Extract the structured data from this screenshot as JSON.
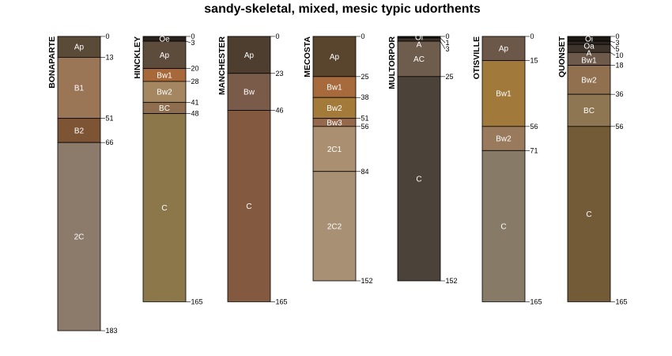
{
  "chart_data": {
    "type": "soil-profile-sketch",
    "title": "sandy-skeletal, mixed, mesic typic udorthents",
    "depth_units": "cm",
    "y_max": 183,
    "profiles": [
      {
        "name": "BONAPARTE",
        "max_depth": 183,
        "horizons": [
          {
            "name": "Ap",
            "top": 0,
            "bottom": 13,
            "color": "#5a4a38"
          },
          {
            "name": "B1",
            "top": 13,
            "bottom": 51,
            "color": "#9a7556"
          },
          {
            "name": "B2",
            "top": 51,
            "bottom": 66,
            "color": "#7d5535"
          },
          {
            "name": "2C",
            "top": 66,
            "bottom": 183,
            "color": "#8c7b6b"
          }
        ]
      },
      {
        "name": "HINCKLEY",
        "max_depth": 165,
        "horizons": [
          {
            "name": "Oe",
            "top": 0,
            "bottom": 3,
            "color": "#2a221c"
          },
          {
            "name": "Ap",
            "top": 3,
            "bottom": 20,
            "color": "#5d4c3c"
          },
          {
            "name": "Bw1",
            "top": 20,
            "bottom": 28,
            "color": "#a8693a"
          },
          {
            "name": "Bw2",
            "top": 28,
            "bottom": 41,
            "color": "#a48660"
          },
          {
            "name": "BC",
            "top": 41,
            "bottom": 48,
            "color": "#8e6e4e"
          },
          {
            "name": "C",
            "top": 48,
            "bottom": 165,
            "color": "#8c774b"
          }
        ]
      },
      {
        "name": "MANCHESTER",
        "max_depth": 165,
        "horizons": [
          {
            "name": "Ap",
            "top": 0,
            "bottom": 23,
            "color": "#4d3e30"
          },
          {
            "name": "Bw",
            "top": 23,
            "bottom": 46,
            "color": "#7a5b4a"
          },
          {
            "name": "C",
            "top": 46,
            "bottom": 165,
            "color": "#835a40"
          }
        ]
      },
      {
        "name": "MECOSTA",
        "max_depth": 152,
        "horizons": [
          {
            "name": "Ap",
            "top": 0,
            "bottom": 25,
            "color": "#59452e"
          },
          {
            "name": "Bw1",
            "top": 25,
            "bottom": 38,
            "color": "#a66a3c"
          },
          {
            "name": "Bw2",
            "top": 38,
            "bottom": 51,
            "color": "#a47a3b"
          },
          {
            "name": "Bw3",
            "top": 51,
            "bottom": 56,
            "color": "#96694c"
          },
          {
            "name": "2C1",
            "top": 56,
            "bottom": 84,
            "color": "#aa9070"
          },
          {
            "name": "2C2",
            "top": 84,
            "bottom": 152,
            "color": "#a89074"
          }
        ]
      },
      {
        "name": "MULTORPOR",
        "max_depth": 152,
        "horizons": [
          {
            "name": "Oi",
            "top": 0,
            "bottom": 1,
            "color": "#1c1712"
          },
          {
            "name": "A",
            "top": 1,
            "bottom": 3,
            "color": "#3a3028"
          },
          {
            "name": "AC",
            "top": 3,
            "bottom": 25,
            "color": "#6e5c4c"
          },
          {
            "name": "C",
            "top": 25,
            "bottom": 152,
            "color": "#4b423a"
          }
        ]
      },
      {
        "name": "OTISVILLE",
        "max_depth": 165,
        "horizons": [
          {
            "name": "Ap",
            "top": 0,
            "bottom": 15,
            "color": "#6c5848"
          },
          {
            "name": "Bw1",
            "top": 15,
            "bottom": 56,
            "color": "#a17a3b"
          },
          {
            "name": "Bw2",
            "top": 56,
            "bottom": 71,
            "color": "#9a7a5c"
          },
          {
            "name": "C",
            "top": 71,
            "bottom": 165,
            "color": "#877a66"
          }
        ]
      },
      {
        "name": "QUONSET",
        "max_depth": 165,
        "horizons": [
          {
            "name": "Oi",
            "top": 0,
            "bottom": 3,
            "color": "#1c1712"
          },
          {
            "name": "Oa",
            "top": 3,
            "bottom": 5,
            "color": "#2e2620"
          },
          {
            "name": "A",
            "top": 5,
            "bottom": 10,
            "color": "#3e342c"
          },
          {
            "name": "Bw1",
            "top": 10,
            "bottom": 18,
            "color": "#6d5a4a"
          },
          {
            "name": "Bw2",
            "top": 18,
            "bottom": 36,
            "color": "#90704e"
          },
          {
            "name": "BC",
            "top": 36,
            "bottom": 56,
            "color": "#8e7652"
          },
          {
            "name": "C",
            "top": 56,
            "bottom": 165,
            "color": "#735b38"
          }
        ]
      }
    ]
  }
}
